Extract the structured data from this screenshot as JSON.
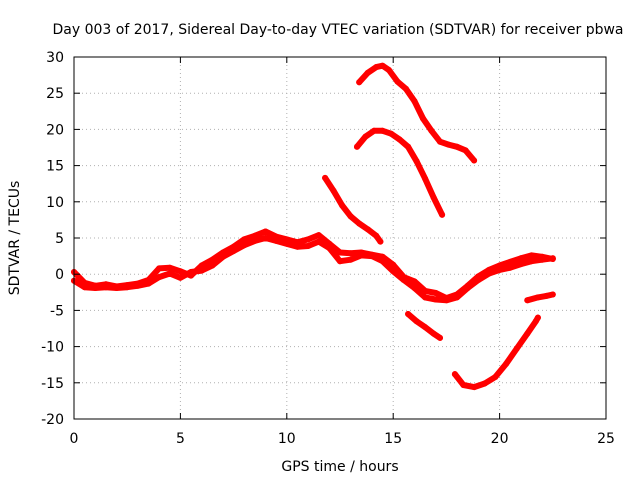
{
  "chart_data": {
    "type": "line",
    "title": "Day 003 of 2017, Sidereal Day-to-day VTEC variation (SDTVAR) for receiver pbwa",
    "xlabel": "GPS time / hours",
    "ylabel": "SDTVAR / TECUs",
    "xlim": [
      0,
      25
    ],
    "ylim": [
      -20,
      30
    ],
    "xticks": [
      "0",
      "5",
      "10",
      "15",
      "20",
      "25"
    ],
    "yticks": [
      "-20",
      "-15",
      "-10",
      "-5",
      "0",
      "5",
      "10",
      "15",
      "20",
      "25",
      "30"
    ],
    "xtick_values": [
      0,
      5,
      10,
      15,
      20,
      25
    ],
    "ytick_values": [
      -20,
      -15,
      -10,
      -5,
      0,
      5,
      10,
      15,
      20,
      25,
      30
    ],
    "grid": true,
    "color": "#ff0000",
    "series": [
      {
        "name": "main-trace-a",
        "x": [
          0,
          0.5,
          1,
          1.5,
          2,
          2.5,
          3,
          3.5,
          4,
          4.5,
          5,
          5.5,
          6,
          6.5,
          7,
          7.5,
          8,
          8.5,
          9,
          9.5,
          10,
          10.5,
          11,
          11.5,
          12,
          12.5,
          13,
          13.5,
          14,
          14.5,
          15,
          15.5,
          16,
          16.5,
          17,
          17.5,
          18,
          18.5,
          19,
          19.5,
          20,
          20.5,
          21,
          21.5,
          22,
          22.5
        ],
        "y": [
          0.3,
          -1.2,
          -1.6,
          -1.4,
          -1.7,
          -1.5,
          -1.3,
          -0.8,
          0.8,
          0.9,
          0.4,
          -0.2,
          1.2,
          2.0,
          3.0,
          3.8,
          4.8,
          5.3,
          5.9,
          5.2,
          4.8,
          4.4,
          4.8,
          5.4,
          4.2,
          3.0,
          2.9,
          3.0,
          2.7,
          2.4,
          1.3,
          -0.4,
          -1.0,
          -2.3,
          -2.6,
          -3.3,
          -2.8,
          -1.6,
          -0.3,
          0.6,
          1.2,
          1.7,
          2.2,
          2.6,
          2.4,
          2.1
        ]
      },
      {
        "name": "main-trace-b",
        "x": [
          0,
          0.5,
          1,
          1.5,
          2,
          2.5,
          3,
          3.5,
          4,
          4.5,
          5,
          5.5,
          6,
          6.5,
          7,
          7.5,
          8,
          8.5,
          9,
          9.5,
          10,
          10.5,
          11,
          11.5,
          12,
          12.5,
          13,
          13.5,
          14,
          14.5,
          15,
          15.5,
          16,
          16.5,
          17,
          17.5,
          18,
          18.5,
          19,
          19.5,
          20,
          20.5,
          21,
          21.5,
          22,
          22.5
        ],
        "y": [
          -0.9,
          -1.8,
          -1.9,
          -1.8,
          -1.9,
          -1.8,
          -1.6,
          -1.3,
          -0.4,
          0.1,
          -0.5,
          0.3,
          0.5,
          1.2,
          2.4,
          3.2,
          4.0,
          4.6,
          5.0,
          4.6,
          4.2,
          3.8,
          3.9,
          4.5,
          3.6,
          1.8,
          2.0,
          2.6,
          2.5,
          1.8,
          0.4,
          -0.8,
          -1.9,
          -3.2,
          -3.5,
          -3.6,
          -3.2,
          -1.9,
          -0.8,
          0.1,
          0.6,
          0.9,
          1.4,
          1.8,
          2.0,
          2.2
        ]
      },
      {
        "name": "arc-upper",
        "x": [
          13.4,
          13.8,
          14.2,
          14.5,
          14.8,
          15.2,
          15.6,
          16.0,
          16.4,
          16.8,
          17.2,
          17.6,
          18.0,
          18.4,
          18.8
        ],
        "y": [
          26.5,
          27.8,
          28.6,
          28.8,
          28.2,
          26.6,
          25.6,
          23.9,
          21.5,
          19.8,
          18.3,
          17.9,
          17.6,
          17.1,
          15.7
        ]
      },
      {
        "name": "arc-lower",
        "x": [
          13.3,
          13.7,
          14.1,
          14.5,
          14.9,
          15.3,
          15.7,
          16.1,
          16.5,
          16.9,
          17.3
        ],
        "y": [
          17.6,
          19.0,
          19.8,
          19.8,
          19.4,
          18.6,
          17.6,
          15.6,
          13.2,
          10.6,
          8.2
        ]
      },
      {
        "name": "segment-mid-left",
        "x": [
          11.8,
          12.2,
          12.6,
          13.0,
          13.4,
          13.8,
          14.2,
          14.4
        ],
        "y": [
          13.3,
          11.5,
          9.5,
          8.0,
          7.0,
          6.2,
          5.3,
          4.5
        ]
      },
      {
        "name": "segment-mid-right",
        "x": [
          15.7,
          16.1,
          16.5,
          16.9,
          17.2
        ],
        "y": [
          -5.5,
          -6.5,
          -7.3,
          -8.2,
          -8.8
        ]
      },
      {
        "name": "segment-bottom",
        "x": [
          17.9,
          18.3,
          18.8,
          19.3,
          19.8,
          20.3,
          20.8,
          21.3,
          21.7,
          21.8
        ],
        "y": [
          -13.8,
          -15.3,
          -15.6,
          -15.1,
          -14.2,
          -12.4,
          -10.3,
          -8.2,
          -6.5,
          -6.0
        ]
      },
      {
        "name": "segment-right-tail",
        "x": [
          21.3,
          21.8,
          22.2,
          22.5
        ],
        "y": [
          -3.6,
          -3.2,
          -3.0,
          -2.8
        ]
      }
    ]
  }
}
